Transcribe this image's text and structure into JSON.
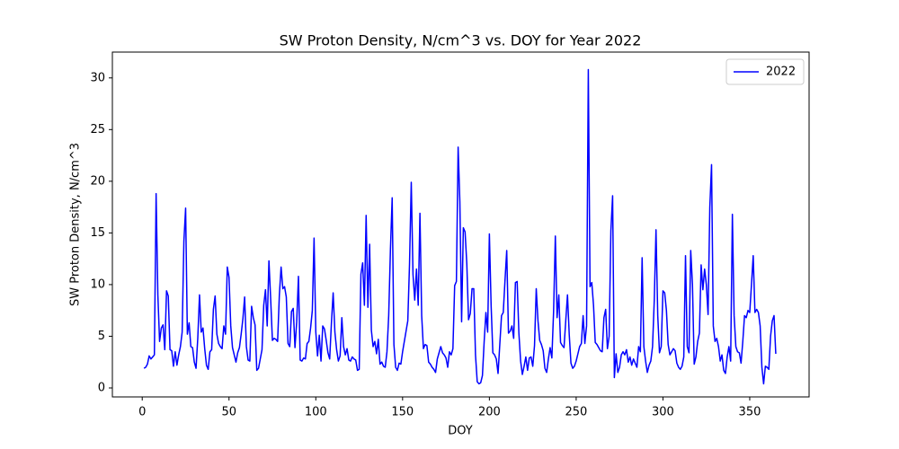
{
  "chart_data": {
    "type": "line",
    "title": "SW Proton Density, N/cm^3  vs. DOY for Year 2022",
    "x_label": "DOY",
    "y_label": "SW Proton Density, N/cm^3",
    "x": [
      1,
      2,
      3,
      4,
      5,
      6,
      7,
      8,
      9,
      10,
      11,
      12,
      13,
      14,
      15,
      16,
      17,
      18,
      19,
      20,
      21,
      22,
      23,
      24,
      25,
      26,
      27,
      28,
      29,
      30,
      31,
      32,
      33,
      34,
      35,
      36,
      37,
      38,
      39,
      40,
      41,
      42,
      43,
      44,
      45,
      46,
      47,
      48,
      49,
      50,
      51,
      52,
      53,
      54,
      55,
      56,
      57,
      58,
      59,
      60,
      61,
      62,
      63,
      64,
      65,
      66,
      67,
      68,
      69,
      70,
      71,
      72,
      73,
      74,
      75,
      76,
      77,
      78,
      79,
      80,
      81,
      82,
      83,
      84,
      85,
      86,
      87,
      88,
      89,
      90,
      91,
      92,
      93,
      94,
      95,
      96,
      97,
      98,
      99,
      100,
      101,
      102,
      103,
      104,
      105,
      106,
      107,
      108,
      109,
      110,
      111,
      112,
      113,
      114,
      115,
      116,
      117,
      118,
      119,
      120,
      121,
      122,
      123,
      124,
      125,
      126,
      127,
      128,
      129,
      130,
      131,
      132,
      133,
      134,
      135,
      136,
      137,
      138,
      139,
      140,
      141,
      142,
      143,
      144,
      145,
      146,
      147,
      148,
      149,
      150,
      151,
      152,
      153,
      154,
      155,
      156,
      157,
      158,
      159,
      160,
      161,
      162,
      163,
      164,
      165,
      166,
      167,
      168,
      169,
      170,
      171,
      172,
      173,
      174,
      175,
      176,
      177,
      178,
      179,
      180,
      181,
      182,
      183,
      184,
      185,
      186,
      187,
      188,
      189,
      190,
      191,
      192,
      193,
      194,
      195,
      196,
      197,
      198,
      199,
      200,
      201,
      202,
      203,
      204,
      205,
      206,
      207,
      208,
      209,
      210,
      211,
      212,
      213,
      214,
      215,
      216,
      217,
      218,
      219,
      220,
      221,
      222,
      223,
      224,
      225,
      226,
      227,
      228,
      229,
      230,
      231,
      232,
      233,
      234,
      235,
      236,
      237,
      238,
      239,
      240,
      241,
      242,
      243,
      244,
      245,
      246,
      247,
      248,
      249,
      250,
      251,
      252,
      253,
      254,
      255,
      256,
      257,
      258,
      259,
      260,
      261,
      262,
      263,
      264,
      265,
      266,
      267,
      268,
      269,
      270,
      271,
      272,
      273,
      274,
      275,
      276,
      277,
      278,
      279,
      280,
      281,
      282,
      283,
      284,
      285,
      286,
      287,
      288,
      289,
      290,
      291,
      292,
      293,
      294,
      295,
      296,
      297,
      298,
      299,
      300,
      301,
      302,
      303,
      304,
      305,
      306,
      307,
      308,
      309,
      310,
      311,
      312,
      313,
      314,
      315,
      316,
      317,
      318,
      319,
      320,
      321,
      322,
      323,
      324,
      325,
      326,
      327,
      328,
      329,
      330,
      331,
      332,
      333,
      334,
      335,
      336,
      337,
      338,
      339,
      340,
      341,
      342,
      343,
      344,
      345,
      346,
      347,
      348,
      349,
      350,
      351,
      352,
      353,
      354,
      355,
      356,
      357,
      358,
      359,
      360,
      361,
      362,
      363,
      364,
      365
    ],
    "series": [
      {
        "name": "2022",
        "color": "#0000ff",
        "values": [
          1.9,
          2.0,
          2.3,
          3.1,
          2.8,
          3.0,
          3.2,
          18.8,
          9.0,
          4.5,
          5.8,
          6.1,
          3.7,
          9.4,
          8.9,
          3.7,
          3.6,
          2.1,
          3.5,
          2.2,
          3.2,
          4.0,
          5.4,
          14.2,
          17.4,
          5.2,
          6.3,
          4.0,
          3.9,
          2.5,
          1.9,
          4.8,
          9.0,
          5.4,
          5.8,
          3.8,
          2.2,
          1.8,
          3.5,
          3.7,
          7.6,
          8.9,
          5.2,
          4.3,
          4.0,
          3.8,
          6.0,
          5.2,
          11.7,
          10.7,
          6.0,
          3.9,
          3.2,
          2.5,
          3.4,
          3.9,
          5.2,
          6.7,
          8.8,
          4.0,
          2.7,
          2.6,
          7.9,
          6.8,
          6.1,
          1.7,
          1.9,
          2.8,
          3.7,
          8.0,
          9.5,
          6.0,
          12.3,
          8.6,
          4.6,
          4.8,
          4.7,
          4.5,
          9.0,
          11.7,
          9.6,
          9.8,
          8.8,
          4.3,
          4.0,
          7.4,
          7.7,
          3.9,
          6.4,
          10.8,
          2.7,
          2.6,
          2.9,
          2.8,
          4.3,
          4.5,
          5.8,
          7.5,
          14.5,
          5.4,
          3.1,
          5.1,
          2.6,
          6.0,
          5.7,
          4.6,
          3.4,
          2.8,
          6.3,
          9.2,
          5.4,
          3.7,
          2.6,
          3.1,
          6.8,
          4.0,
          3.2,
          3.8,
          2.7,
          2.6,
          3.0,
          2.8,
          2.7,
          1.7,
          1.8,
          11.0,
          12.1,
          8.0,
          16.7,
          7.8,
          13.9,
          5.6,
          4.0,
          4.5,
          3.3,
          4.7,
          2.3,
          2.5,
          2.1,
          2.0,
          3.5,
          7.0,
          13.4,
          18.4,
          4.2,
          2.0,
          1.7,
          2.4,
          2.3,
          3.5,
          4.5,
          5.5,
          6.5,
          12.0,
          19.9,
          11.0,
          8.5,
          11.5,
          8.0,
          16.9,
          7.0,
          3.8,
          4.2,
          4.1,
          2.5,
          2.3,
          2.0,
          1.8,
          1.5,
          2.8,
          3.4,
          4.0,
          3.4,
          3.2,
          2.9,
          2.0,
          3.5,
          3.2,
          3.8,
          9.9,
          10.3,
          23.3,
          18.0,
          6.4,
          15.5,
          15.1,
          12.0,
          6.6,
          7.2,
          9.6,
          9.6,
          3.2,
          0.6,
          0.4,
          0.5,
          1.2,
          4.5,
          7.3,
          5.4,
          14.9,
          8.0,
          3.4,
          3.2,
          2.8,
          1.4,
          4.2,
          7.0,
          7.3,
          10.4,
          13.3,
          5.3,
          5.5,
          6.0,
          4.8,
          10.2,
          10.3,
          5.3,
          2.6,
          1.3,
          2.1,
          3.0,
          1.7,
          2.9,
          3.0,
          2.1,
          4.1,
          9.6,
          6.5,
          4.6,
          4.2,
          3.6,
          1.9,
          1.5,
          2.8,
          3.9,
          2.9,
          7.4,
          14.7,
          6.8,
          9.0,
          4.4,
          4.1,
          3.9,
          6.5,
          9.0,
          5.2,
          2.4,
          1.9,
          2.1,
          2.6,
          3.3,
          4.0,
          4.3,
          7.0,
          4.3,
          6.0,
          30.8,
          9.8,
          10.2,
          8.0,
          4.4,
          4.2,
          3.9,
          3.6,
          3.5,
          6.8,
          7.6,
          3.8,
          5.0,
          15.2,
          18.6,
          1.0,
          3.3,
          1.5,
          2.0,
          3.2,
          3.5,
          3.2,
          3.7,
          2.5,
          3.0,
          2.2,
          2.8,
          2.4,
          2.0,
          4.0,
          3.5,
          12.6,
          4.0,
          2.6,
          1.5,
          2.2,
          2.6,
          4.0,
          8.5,
          15.3,
          7.0,
          3.4,
          4.0,
          9.4,
          9.2,
          7.5,
          4.2,
          3.2,
          3.5,
          3.8,
          3.6,
          2.4,
          2.0,
          1.8,
          2.1,
          3.0,
          12.8,
          4.0,
          3.4,
          13.3,
          10.0,
          2.3,
          3.0,
          4.5,
          5.3,
          11.9,
          9.5,
          11.5,
          10.0,
          7.1,
          17.5,
          21.6,
          6.0,
          4.5,
          4.8,
          4.0,
          2.6,
          3.2,
          1.7,
          1.4,
          3.0,
          4.0,
          2.6,
          16.8,
          7.0,
          4.0,
          3.5,
          3.4,
          2.4,
          4.5,
          7.0,
          6.8,
          7.5,
          7.3,
          10.0,
          12.8,
          7.3,
          7.6,
          7.3,
          6.0,
          2.0,
          0.4,
          2.1,
          2.0,
          1.8,
          5.0,
          6.5,
          7.0,
          3.3
        ]
      }
    ],
    "xlim": [
      -17.2,
      384.2
    ],
    "xticks": [
      0,
      50,
      100,
      150,
      200,
      250,
      300,
      350
    ],
    "ylim": [
      -0.87,
      32.5
    ],
    "yticks": [
      0,
      5,
      10,
      15,
      20,
      25,
      30
    ],
    "legend": "upper right",
    "grid": false
  }
}
